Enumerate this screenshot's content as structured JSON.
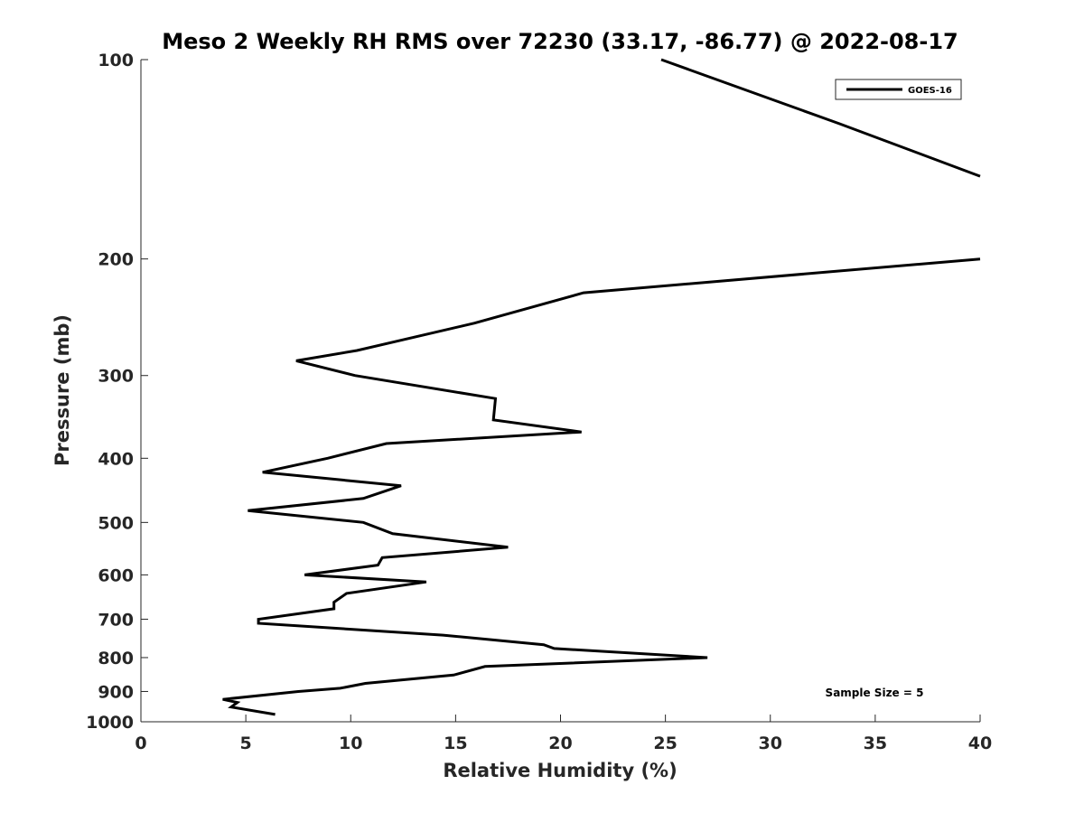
{
  "chart_data": {
    "type": "line",
    "title": "Meso 2 Weekly RH RMS over 72230 (33.17, -86.77) @ 2022-08-17",
    "xlabel": "Relative Humidity (%)",
    "ylabel": "Pressure (mb)",
    "xlim": [
      0,
      40
    ],
    "ylim": [
      100,
      1000
    ],
    "yscale": "log",
    "y_reversed": true,
    "grid": false,
    "legend_position": "top-right",
    "xticks": [
      0,
      5,
      10,
      15,
      20,
      25,
      30,
      35,
      40
    ],
    "xtick_labels": [
      "0",
      "5",
      "10",
      "15",
      "20",
      "25",
      "30",
      "35",
      "40"
    ],
    "yticks": [
      100,
      200,
      300,
      400,
      500,
      600,
      700,
      800,
      900,
      1000
    ],
    "ytick_labels": [
      "100",
      "200",
      "300",
      "400",
      "500",
      "600",
      "700",
      "800",
      "900",
      "1000"
    ],
    "series": [
      {
        "name": "GOES-16",
        "color": "#000000",
        "points": [
          [
            24.8,
            100
          ],
          [
            33.3,
            125
          ],
          [
            40,
            150
          ],
          [
            40,
            200
          ],
          [
            21.1,
            225
          ],
          [
            15.9,
            250
          ],
          [
            10.3,
            275
          ],
          [
            7.4,
            285
          ],
          [
            10.2,
            300
          ],
          [
            16.9,
            325
          ],
          [
            16.8,
            350
          ],
          [
            21.0,
            365
          ],
          [
            11.7,
            380
          ],
          [
            8.9,
            400
          ],
          [
            5.8,
            420
          ],
          [
            12.4,
            440
          ],
          [
            10.6,
            460
          ],
          [
            5.1,
            480
          ],
          [
            10.6,
            500
          ],
          [
            12.0,
            520
          ],
          [
            17.5,
            545
          ],
          [
            11.5,
            565
          ],
          [
            11.3,
            580
          ],
          [
            7.8,
            600
          ],
          [
            13.6,
            615
          ],
          [
            9.8,
            640
          ],
          [
            9.2,
            660
          ],
          [
            9.2,
            675
          ],
          [
            5.6,
            700
          ],
          [
            5.6,
            710
          ],
          [
            14.4,
            740
          ],
          [
            19.2,
            765
          ],
          [
            19.7,
            775
          ],
          [
            27.0,
            800
          ],
          [
            16.4,
            825
          ],
          [
            14.9,
            850
          ],
          [
            10.7,
            875
          ],
          [
            9.5,
            890
          ],
          [
            7.5,
            900
          ],
          [
            3.9,
            925
          ],
          [
            4.6,
            935
          ],
          [
            4.3,
            950
          ],
          [
            6.4,
            975
          ]
        ]
      }
    ],
    "legend": [
      "GOES-16"
    ],
    "annotations": [
      {
        "text": "Sample Size = 5",
        "x": 35,
        "y": 900
      }
    ]
  }
}
